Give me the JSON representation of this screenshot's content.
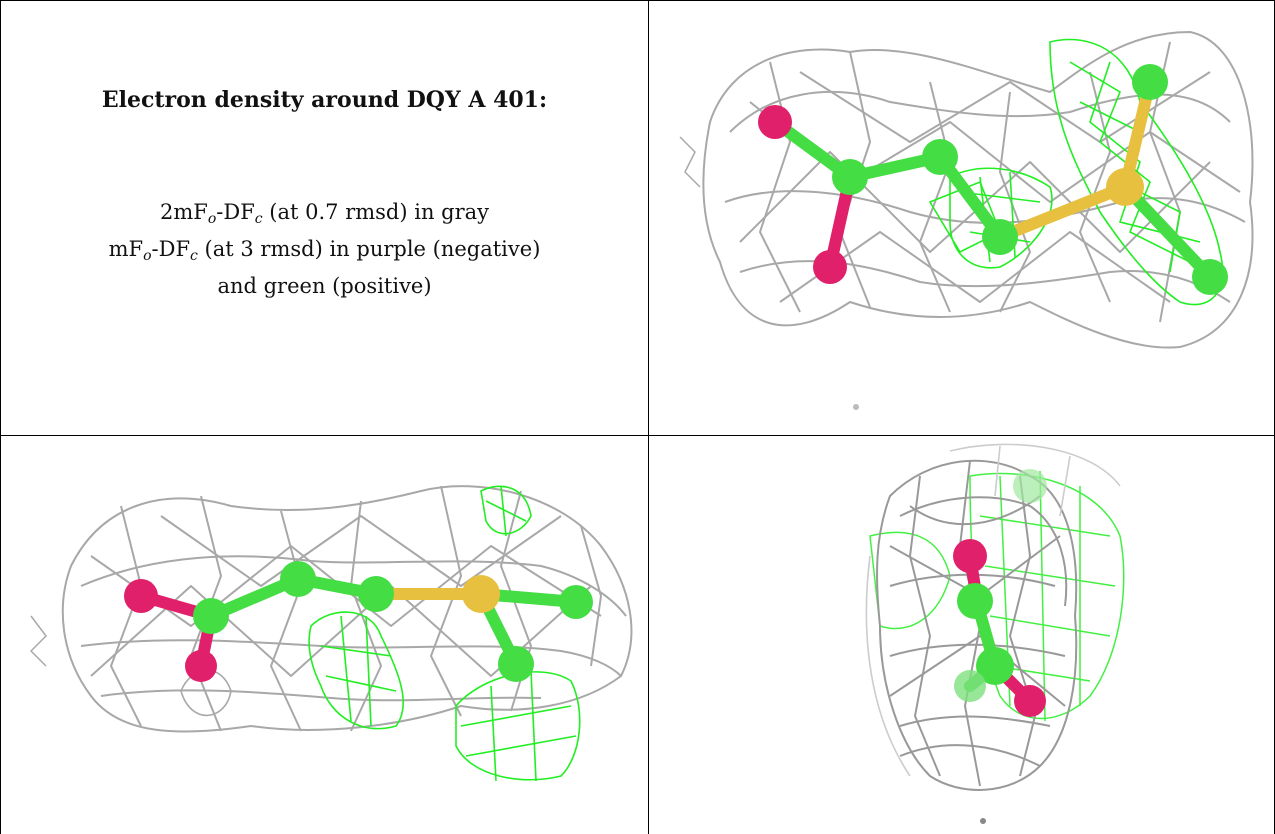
{
  "caption": {
    "title": "Electron density around DQY A 401:",
    "line1": {
      "prefix": "2mF",
      "sub1": "o",
      "mid": "-DF",
      "sub2": "c",
      "suffix": " (at 0.7 rmsd) in gray"
    },
    "line2": {
      "prefix": "mF",
      "sub1": "o",
      "mid": "-DF",
      "sub2": "c",
      "suffix": " (at 3 rmsd) in purple (negative)"
    },
    "line3": "and green (positive)"
  },
  "colors": {
    "mesh_2fofc": "#a8a8a8",
    "mesh_positive": "#22ee22",
    "carbon": "#44dd44",
    "oxygen": "#e0206a",
    "sulfur": "#e8c040",
    "border": "#000000"
  },
  "views": [
    "view-1",
    "view-2",
    "view-3"
  ]
}
